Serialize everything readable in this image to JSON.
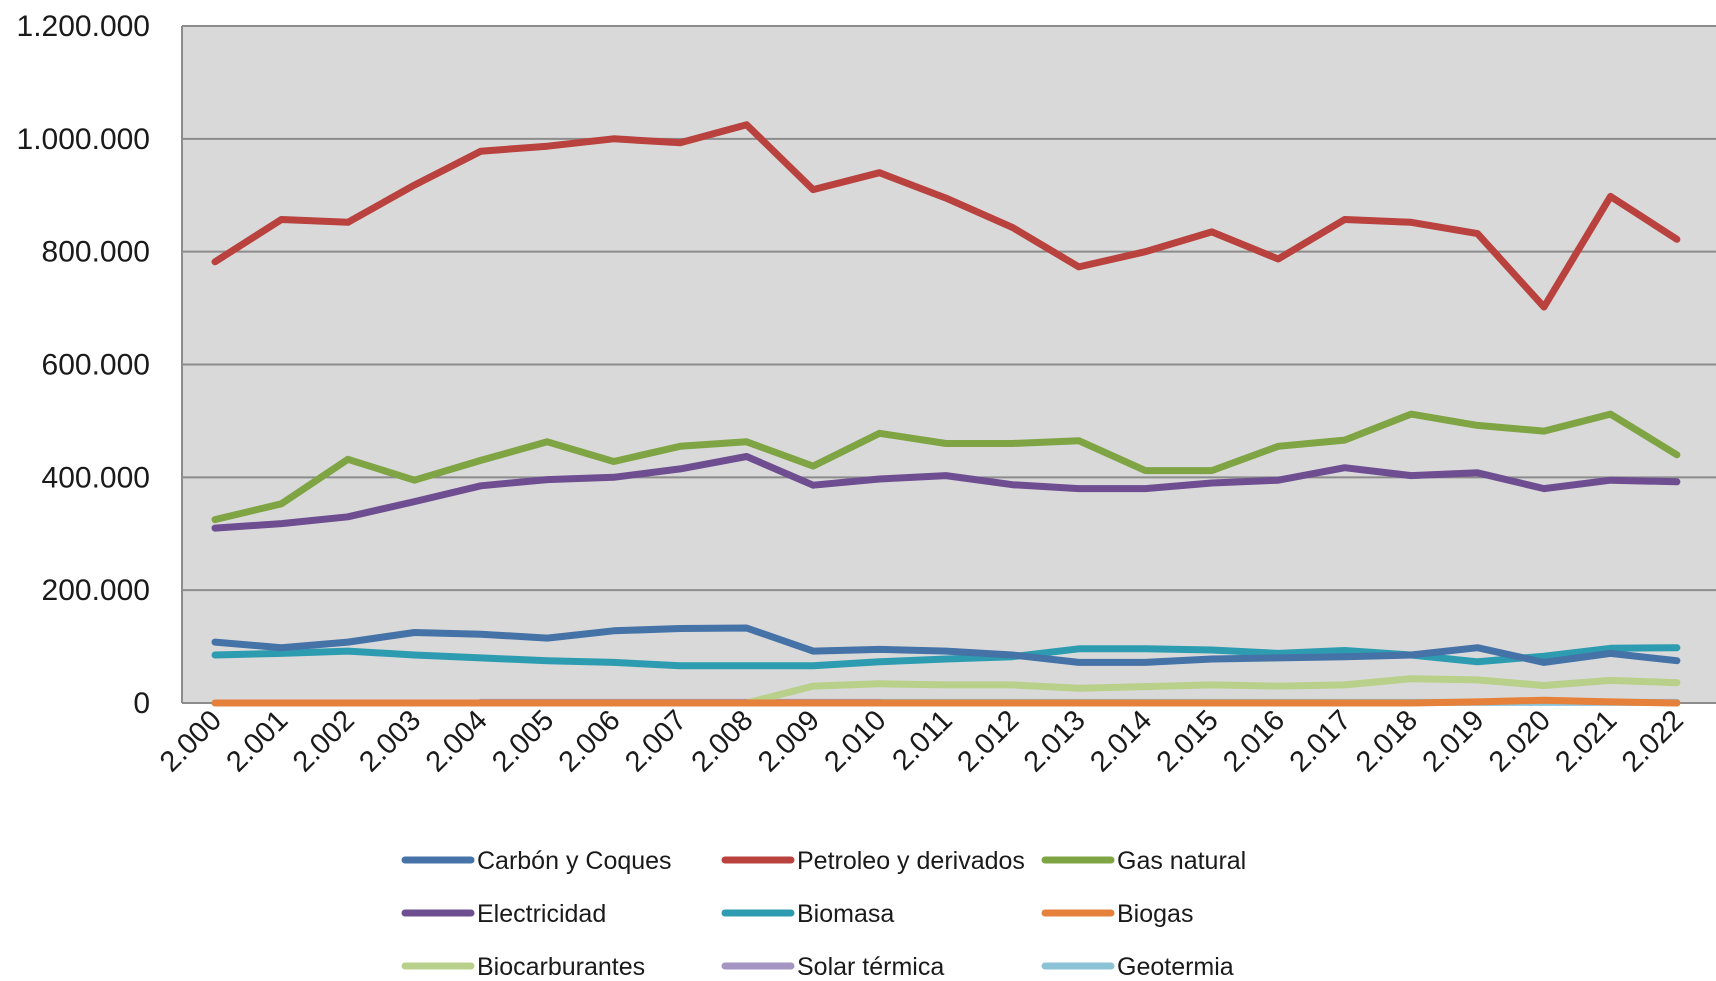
{
  "chart_data": {
    "type": "line",
    "title": "",
    "xlabel": "",
    "ylabel": "",
    "ylim": [
      0,
      1200000
    ],
    "y_ticks": [
      0,
      200000,
      400000,
      600000,
      800000,
      1000000,
      1200000
    ],
    "y_tick_labels": [
      "0",
      "200.000",
      "400.000",
      "600.000",
      "800.000",
      "1.000.000",
      "1.200.000"
    ],
    "grid": true,
    "plot_background": "#d9d9d9",
    "legend_position": "bottom",
    "categories": [
      "2.000",
      "2.001",
      "2.002",
      "2.003",
      "2.004",
      "2.005",
      "2.006",
      "2.007",
      "2.008",
      "2.009",
      "2.010",
      "2.011",
      "2.012",
      "2.013",
      "2.014",
      "2.015",
      "2.016",
      "2.017",
      "2.018",
      "2.019",
      "2.020",
      "2.021",
      "2.022"
    ],
    "series": [
      {
        "name": "Carbón y Coques",
        "color": "#4572a7",
        "values": [
          108000,
          98000,
          108000,
          125000,
          122000,
          115000,
          128000,
          132000,
          133000,
          92000,
          95000,
          92000,
          85000,
          72000,
          72000,
          78000,
          80000,
          82000,
          85000,
          98000,
          72000,
          88000,
          75000
        ]
      },
      {
        "name": "Petroleo y derivados",
        "color": "#b9413e",
        "values": [
          782000,
          857000,
          852000,
          918000,
          978000,
          987000,
          1000000,
          993000,
          1025000,
          910000,
          940000,
          895000,
          843000,
          773000,
          800000,
          835000,
          787000,
          857000,
          852000,
          832000,
          702000,
          898000,
          822000
        ]
      },
      {
        "name": "Gas natural",
        "color": "#7fa444",
        "values": [
          325000,
          353000,
          432000,
          395000,
          430000,
          463000,
          428000,
          455000,
          463000,
          420000,
          478000,
          460000,
          460000,
          465000,
          412000,
          412000,
          455000,
          466000,
          512000,
          492000,
          482000,
          512000,
          440000
        ]
      },
      {
        "name": "Electricidad",
        "color": "#6e4d91",
        "values": [
          310000,
          318000,
          330000,
          357000,
          385000,
          396000,
          400000,
          415000,
          437000,
          386000,
          397000,
          403000,
          387000,
          380000,
          380000,
          390000,
          395000,
          417000,
          403000,
          408000,
          380000,
          395000,
          392000
        ]
      },
      {
        "name": "Biomasa",
        "color": "#2e9cb0",
        "values": [
          85000,
          88000,
          92000,
          85000,
          80000,
          75000,
          72000,
          66000,
          66000,
          66000,
          73000,
          78000,
          82000,
          96000,
          96000,
          94000,
          88000,
          93000,
          85000,
          73000,
          83000,
          97000,
          98000
        ]
      },
      {
        "name": "Biogas",
        "color": "#e5813a",
        "values": [
          0,
          0,
          0,
          0,
          0,
          0,
          0,
          0,
          0,
          0,
          0,
          0,
          0,
          0,
          0,
          0,
          0,
          0,
          0,
          2000,
          5000,
          2000,
          0
        ]
      },
      {
        "name": "Biocarburantes",
        "color": "#b8d08a",
        "values": [
          null,
          null,
          null,
          null,
          null,
          null,
          null,
          null,
          0,
          30000,
          34000,
          32000,
          32000,
          26000,
          29000,
          32000,
          30000,
          32000,
          43000,
          41000,
          31000,
          40000,
          36000
        ]
      },
      {
        "name": "Solar térmica",
        "color": "#a595c2",
        "values": [
          null,
          null,
          null,
          null,
          1000,
          1000,
          1000,
          1000,
          1000,
          1000,
          1000,
          null,
          null,
          null,
          null,
          null,
          null,
          null,
          null,
          null,
          null,
          null,
          null
        ]
      },
      {
        "name": "Geotermia",
        "color": "#8cc2d6",
        "values": [
          null,
          null,
          null,
          null,
          null,
          null,
          null,
          null,
          null,
          null,
          1000,
          1000,
          1000,
          1000,
          1000,
          1000,
          1000,
          1000,
          1000,
          1000,
          1000,
          1000,
          1000
        ]
      }
    ]
  }
}
